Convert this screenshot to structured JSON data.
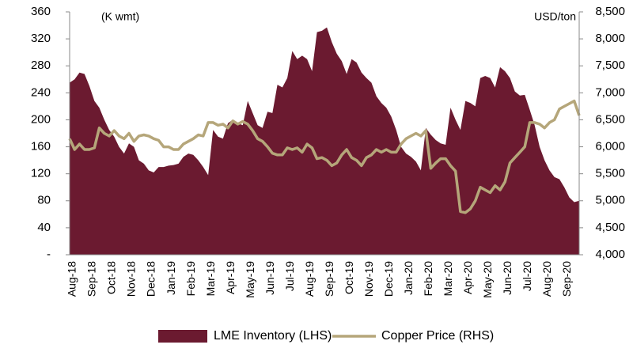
{
  "chart_data": {
    "type": "line",
    "y_label": "(K wmt)",
    "y2_label": "USD/ton",
    "categories": [
      "Aug-18",
      null,
      null,
      null,
      "Sep-18",
      null,
      null,
      null,
      "Oct-18",
      null,
      null,
      null,
      "Nov-18",
      null,
      null,
      null,
      "Dec-18",
      null,
      null,
      null,
      "Jan-19",
      null,
      null,
      null,
      "Feb-19",
      null,
      null,
      null,
      "Mar-19",
      null,
      null,
      null,
      "Apr-19",
      null,
      null,
      null,
      "May-19",
      null,
      null,
      null,
      "Jun-19",
      null,
      null,
      null,
      "Jul-19",
      null,
      null,
      null,
      "Aug-19",
      null,
      null,
      null,
      "Sep-19",
      null,
      null,
      null,
      "Oct-19",
      null,
      null,
      null,
      "Nov-19",
      null,
      null,
      null,
      "Dec-19",
      null,
      null,
      null,
      "Jan-20",
      null,
      null,
      null,
      "Feb-20",
      null,
      null,
      null,
      "Mar-20",
      null,
      null,
      null,
      "Apr-20",
      null,
      null,
      null,
      "May-20",
      null,
      null,
      null,
      "Jun-20",
      null,
      null,
      null,
      "Jul-20",
      null,
      null,
      null,
      "Aug-20",
      null,
      null,
      null,
      "Sep-20",
      null,
      null,
      null
    ],
    "series": [
      {
        "name": "LME Inventory (LHS)",
        "type": "area",
        "color": "#6b1a30",
        "values": [
          255,
          260,
          270,
          268,
          250,
          228,
          218,
          200,
          185,
          175,
          160,
          150,
          165,
          160,
          140,
          135,
          125,
          122,
          130,
          130,
          132,
          133,
          135,
          145,
          150,
          148,
          140,
          130,
          118,
          185,
          175,
          172,
          195,
          200,
          195,
          192,
          228,
          210,
          192,
          188,
          212,
          210,
          252,
          248,
          262,
          302,
          290,
          295,
          290,
          272,
          330,
          332,
          337,
          315,
          298,
          287,
          268,
          290,
          285,
          270,
          262,
          255,
          235,
          225,
          218,
          205,
          185,
          160,
          150,
          145,
          138,
          125,
          188,
          178,
          170,
          165,
          163,
          218,
          200,
          185,
          228,
          225,
          220,
          262,
          265,
          262,
          248,
          278,
          272,
          262,
          242,
          236,
          237,
          215,
          192,
          160,
          140,
          125,
          115,
          112,
          100,
          85,
          78,
          80
        ]
      },
      {
        "name": "Copper Price (RHS)",
        "type": "line",
        "axis": "y2",
        "color": "#b5a67a",
        "values": [
          6150,
          5950,
          6050,
          5950,
          5950,
          5980,
          6350,
          6250,
          6200,
          6300,
          6200,
          6150,
          6250,
          6100,
          6200,
          6220,
          6200,
          6150,
          6120,
          6000,
          6000,
          5950,
          5950,
          6050,
          6100,
          6150,
          6220,
          6200,
          6450,
          6450,
          6400,
          6420,
          6350,
          6480,
          6420,
          6470,
          6420,
          6300,
          6150,
          6100,
          6000,
          5880,
          5850,
          5850,
          5980,
          5950,
          5980,
          5900,
          6050,
          5980,
          5780,
          5800,
          5750,
          5650,
          5700,
          5850,
          5950,
          5800,
          5750,
          5650,
          5800,
          5850,
          5950,
          5900,
          5950,
          5900,
          5900,
          6050,
          6150,
          6200,
          6250,
          6200,
          6300,
          5600,
          5700,
          5780,
          5780,
          5650,
          5550,
          4800,
          4780,
          4850,
          5000,
          5250,
          5200,
          5150,
          5280,
          5200,
          5350,
          5700,
          5800,
          5900,
          6000,
          6450,
          6450,
          6420,
          6350,
          6450,
          6500,
          6700,
          6750,
          6800,
          6850,
          6580
        ]
      }
    ],
    "ylim": [
      0,
      360
    ],
    "yticks": [
      {
        "value": 0,
        "label": "-"
      },
      40,
      80,
      120,
      160,
      200,
      240,
      280,
      320,
      360
    ],
    "y2lim": [
      4000,
      8500
    ],
    "y2ticks": [
      {
        "value": 4000,
        "label": "4,000"
      },
      {
        "value": 4500,
        "label": "4,500"
      },
      {
        "value": 5000,
        "label": "5,000"
      },
      {
        "value": 5500,
        "label": "5,500"
      },
      {
        "value": 6000,
        "label": "6,000"
      },
      {
        "value": 6500,
        "label": "6,500"
      },
      {
        "value": 7000,
        "label": "7,000"
      },
      {
        "value": 7500,
        "label": "7,500"
      },
      {
        "value": 8000,
        "label": "8,000"
      },
      {
        "value": 8500,
        "label": "8,500"
      }
    ],
    "legend": "bottom"
  }
}
